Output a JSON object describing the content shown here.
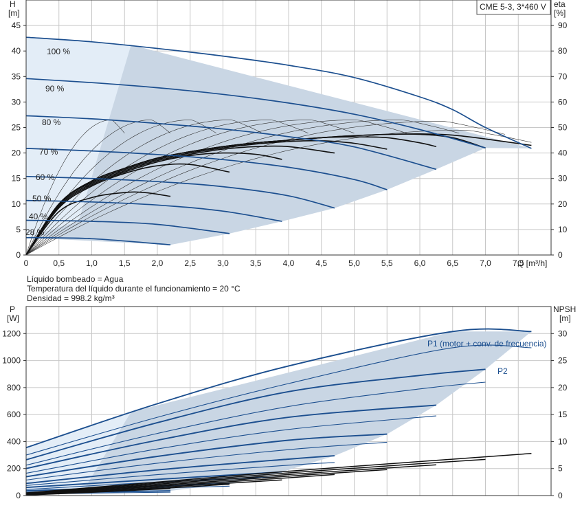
{
  "model_box": "CME 5-3, 3*460 V",
  "notes": [
    "Líquido bombeado = Agua",
    "Temperatura del líquido durante el funcionamiento = 20 °C",
    "Densidad = 998.2 kg/m³"
  ],
  "colors": {
    "curve_blue": "#1c4f8f",
    "curve_black": "#111111",
    "area_fill": "#c9d6e4",
    "area_fill_light": "#e3edf7",
    "grid": "#c8c8c8"
  },
  "chart_data": [
    {
      "type": "line",
      "title": "",
      "xlabel": "Q [m³/h]",
      "xlim": [
        0,
        8
      ],
      "xticks": [
        "0",
        "0,5",
        "1,0",
        "1,5",
        "2,0",
        "2,5",
        "3,0",
        "3,5",
        "4,0",
        "4,5",
        "5,0",
        "5,5",
        "6,0",
        "6,5",
        "7,0",
        "7,5"
      ],
      "ylabel_left": [
        "H",
        "[m]"
      ],
      "ylim_left": [
        0,
        50
      ],
      "yticks_left": [
        "0",
        "5",
        "10",
        "15",
        "20",
        "25",
        "30",
        "35",
        "40",
        "45"
      ],
      "ylabel_right": [
        "eta",
        "[%]"
      ],
      "ylim_right": [
        0,
        100
      ],
      "yticks_right": [
        "0",
        "10",
        "20",
        "30",
        "40",
        "50",
        "60",
        "70",
        "80",
        "90"
      ],
      "grid": true,
      "speed_labels": [
        "100 %",
        "90 %",
        "80 %",
        "70 %",
        "60 %",
        "50 %",
        "40 %",
        "28 %"
      ],
      "head_series": [
        {
          "speed": 100,
          "x": [
            0,
            1,
            2,
            3,
            4,
            5,
            6,
            6.5,
            7.0,
            7.7
          ],
          "y": [
            42.7,
            41.8,
            40.5,
            39.0,
            37.2,
            34.8,
            31.0,
            28.5,
            25.0,
            20.9
          ]
        },
        {
          "speed": 90,
          "x": [
            0,
            1,
            2,
            3,
            4,
            5,
            6,
            7.0
          ],
          "y": [
            34.6,
            33.8,
            32.8,
            31.5,
            29.8,
            27.6,
            24.6,
            21.0
          ]
        },
        {
          "speed": 80,
          "x": [
            0,
            1,
            2,
            3,
            4,
            5,
            6.25
          ],
          "y": [
            27.3,
            26.7,
            25.8,
            24.7,
            23.2,
            21.2,
            16.8
          ]
        },
        {
          "speed": 70,
          "x": [
            0,
            1,
            2,
            3,
            4,
            5,
            5.5
          ],
          "y": [
            20.9,
            20.4,
            19.7,
            18.7,
            17.2,
            14.8,
            12.8
          ]
        },
        {
          "speed": 60,
          "x": [
            0,
            1,
            2,
            3,
            4,
            4.7
          ],
          "y": [
            15.4,
            15.0,
            14.4,
            13.4,
            11.6,
            9.2
          ]
        },
        {
          "speed": 50,
          "x": [
            0,
            1,
            2,
            3,
            3.9
          ],
          "y": [
            10.7,
            10.4,
            9.8,
            8.6,
            6.6
          ]
        },
        {
          "speed": 40,
          "x": [
            0,
            1,
            2,
            3.1
          ],
          "y": [
            6.8,
            6.6,
            6.0,
            4.2
          ]
        },
        {
          "speed": 28,
          "x": [
            0,
            1,
            2.2
          ],
          "y": [
            3.4,
            3.2,
            2.0
          ]
        }
      ],
      "efficiency_series": [
        {
          "speed": 100,
          "x": [
            0,
            0.5,
            1,
            1.5,
            2,
            2.5,
            3,
            3.5,
            4,
            4.5,
            5,
            5.5,
            6,
            6.5,
            7,
            7.7
          ],
          "eta": [
            0,
            20,
            29,
            34,
            38,
            40.5,
            42.5,
            44,
            45,
            46,
            46.8,
            47.3,
            47.5,
            47.0,
            45.5,
            43.0
          ]
        },
        {
          "speed": 90,
          "x": [
            0,
            0.5,
            1,
            1.5,
            2,
            2.5,
            3,
            3.5,
            4,
            4.5,
            5,
            5.5,
            6,
            6.5,
            7.0
          ],
          "eta": [
            0,
            20,
            29,
            34,
            38,
            40.5,
            42.5,
            44,
            45,
            46,
            46.8,
            47.3,
            47.3,
            46.0,
            42.0
          ]
        },
        {
          "speed": 80,
          "x": [
            0,
            0.5,
            1,
            1.5,
            2,
            2.5,
            3,
            3.5,
            4,
            4.5,
            5,
            5.5,
            6,
            6.25
          ],
          "eta": [
            0,
            20,
            29,
            34,
            38,
            40.5,
            42.5,
            44,
            45,
            46,
            46.3,
            46.0,
            44.0,
            42.5
          ]
        },
        {
          "speed": 70,
          "x": [
            0,
            0.5,
            1,
            1.5,
            2,
            2.5,
            3,
            3.5,
            4,
            4.5,
            5,
            5.5
          ],
          "eta": [
            0,
            20,
            28.5,
            33.5,
            37.5,
            40,
            42,
            43.5,
            44.5,
            44.8,
            43.8,
            41.5
          ]
        },
        {
          "speed": 60,
          "x": [
            0,
            0.5,
            1,
            1.5,
            2,
            2.5,
            3,
            3.5,
            4,
            4.7
          ],
          "eta": [
            0,
            19.5,
            28,
            33,
            37,
            39.5,
            41.5,
            42.5,
            42.5,
            40.0
          ]
        },
        {
          "speed": 50,
          "x": [
            0,
            0.5,
            1,
            1.5,
            2,
            2.5,
            3,
            3.5,
            3.9
          ],
          "eta": [
            0,
            19,
            27.5,
            32.5,
            36.5,
            39,
            40,
            39.5,
            37.5
          ]
        },
        {
          "speed": 40,
          "x": [
            0,
            0.5,
            1,
            1.5,
            2,
            2.5,
            3.1
          ],
          "eta": [
            0,
            18.5,
            27,
            32,
            35,
            35.5,
            32.5
          ]
        },
        {
          "speed": 28,
          "x": [
            0,
            0.5,
            1,
            1.5,
            1.8,
            2.2
          ],
          "eta": [
            0,
            17,
            22.5,
            24.5,
            24.5,
            23.0
          ]
        }
      ],
      "thin_efficiency_curves": {
        "x_end": [
          1.5,
          2.2,
          2.9,
          3.6,
          4.3,
          5.0,
          5.8,
          6.6,
          7.3,
          7.7
        ],
        "peak_eta": [
          53.0,
          53.0,
          53.0,
          53.0,
          53.0,
          53.0,
          53.0,
          53.0,
          52.5,
          49.0
        ]
      },
      "operating_area": {
        "x": [
          0,
          1.6,
          7.7,
          7.0,
          6.25,
          5.5,
          4.7,
          3.9,
          3.1,
          2.2,
          0
        ],
        "y": [
          42.7,
          41.2,
          20.9,
          21.0,
          16.8,
          12.8,
          9.2,
          6.6,
          4.2,
          2.0,
          3.4
        ]
      }
    },
    {
      "type": "line",
      "title": "",
      "xlim": [
        0,
        8
      ],
      "ylabel_left": [
        "P",
        "[W]"
      ],
      "ylim_left": [
        0,
        1400
      ],
      "yticks_left": [
        "0",
        "200",
        "400",
        "600",
        "800",
        "1000",
        "1200"
      ],
      "ylabel_right": [
        "NPSH",
        "[m]"
      ],
      "ylim_right": [
        0,
        35
      ],
      "yticks_right": [
        "0",
        "5",
        "10",
        "15",
        "20",
        "25",
        "30"
      ],
      "grid": true,
      "p1_label": "P1 (motor + conv. de frecuencia)",
      "p2_label": "P2",
      "p1_series": [
        {
          "speed": 100,
          "x": [
            0,
            2,
            4,
            6.5,
            7.7
          ],
          "y": [
            355,
            680,
            960,
            1215,
            1215
          ]
        },
        {
          "speed": 90,
          "x": [
            0,
            2,
            4,
            6,
            7.0
          ],
          "y": [
            265,
            540,
            770,
            890,
            935
          ]
        },
        {
          "speed": 80,
          "x": [
            0,
            2,
            4,
            6.25
          ],
          "y": [
            200,
            410,
            580,
            670
          ]
        },
        {
          "speed": 70,
          "x": [
            0,
            2,
            4,
            5.5
          ],
          "y": [
            140,
            290,
            410,
            455
          ]
        },
        {
          "speed": 60,
          "x": [
            0,
            2,
            4,
            4.7
          ],
          "y": [
            90,
            190,
            270,
            295
          ]
        },
        {
          "speed": 50,
          "x": [
            0,
            2,
            3.9
          ],
          "y": [
            60,
            120,
            175
          ]
        },
        {
          "speed": 40,
          "x": [
            0,
            2,
            3.1
          ],
          "y": [
            35,
            70,
            90
          ]
        },
        {
          "speed": 28,
          "x": [
            0,
            1,
            2.2
          ],
          "y": [
            15,
            25,
            35
          ]
        }
      ],
      "p2_series": [
        {
          "speed": 100,
          "x": [
            0,
            2,
            4,
            6.5,
            7.7
          ],
          "y": [
            300,
            580,
            830,
            1095,
            1095
          ]
        },
        {
          "speed": 90,
          "x": [
            0,
            2,
            4,
            6,
            7.0
          ],
          "y": [
            225,
            460,
            660,
            790,
            840
          ]
        },
        {
          "speed": 80,
          "x": [
            0,
            2,
            4,
            6.25
          ],
          "y": [
            165,
            345,
            490,
            590
          ]
        },
        {
          "speed": 70,
          "x": [
            0,
            2,
            4,
            5.5
          ],
          "y": [
            115,
            240,
            340,
            395
          ]
        },
        {
          "speed": 60,
          "x": [
            0,
            2,
            4,
            4.7
          ],
          "y": [
            75,
            155,
            225,
            245
          ]
        },
        {
          "speed": 50,
          "x": [
            0,
            2,
            3.9
          ],
          "y": [
            45,
            100,
            140
          ]
        },
        {
          "speed": 40,
          "x": [
            0,
            2,
            3.1
          ],
          "y": [
            25,
            55,
            70
          ]
        },
        {
          "speed": 28,
          "x": [
            0,
            1,
            2.2
          ],
          "y": [
            10,
            18,
            25
          ]
        }
      ],
      "npsh_series": [
        {
          "speed": 100,
          "x": [
            0,
            2,
            4,
            6,
            7.7
          ],
          "npsh": [
            0.5,
            2.5,
            4.5,
            6.3,
            7.8
          ]
        },
        {
          "speed": 90,
          "x": [
            0,
            2,
            4,
            6,
            7.0
          ],
          "npsh": [
            0.4,
            2.3,
            4.2,
            5.9,
            6.7
          ]
        },
        {
          "speed": 80,
          "x": [
            0,
            2,
            4,
            6.25
          ],
          "npsh": [
            0.3,
            2.1,
            3.9,
            5.7
          ]
        },
        {
          "speed": 70,
          "x": [
            0,
            2,
            4,
            5.5
          ],
          "npsh": [
            0.3,
            1.9,
            3.6,
            4.8
          ]
        },
        {
          "speed": 60,
          "x": [
            0,
            2,
            4,
            4.7
          ],
          "npsh": [
            0.2,
            1.7,
            3.3,
            3.9
          ]
        },
        {
          "speed": 50,
          "x": [
            0,
            2,
            3.9
          ],
          "npsh": [
            0.2,
            1.5,
            2.9
          ]
        },
        {
          "speed": 40,
          "x": [
            0,
            2,
            3.1
          ],
          "npsh": [
            0.1,
            1.3,
            2.1
          ]
        },
        {
          "speed": 28,
          "x": [
            0,
            1,
            2.2
          ],
          "npsh": [
            0.1,
            0.6,
            1.3
          ]
        }
      ],
      "operating_area": {
        "x": [
          0,
          1.6,
          6.5,
          7.7,
          7.0,
          6.25,
          5.5,
          4.7,
          3.9,
          3.1,
          2.2,
          0
        ],
        "y": [
          355,
          620,
          1215,
          1215,
          935,
          670,
          455,
          295,
          175,
          90,
          35,
          15
        ]
      }
    }
  ]
}
